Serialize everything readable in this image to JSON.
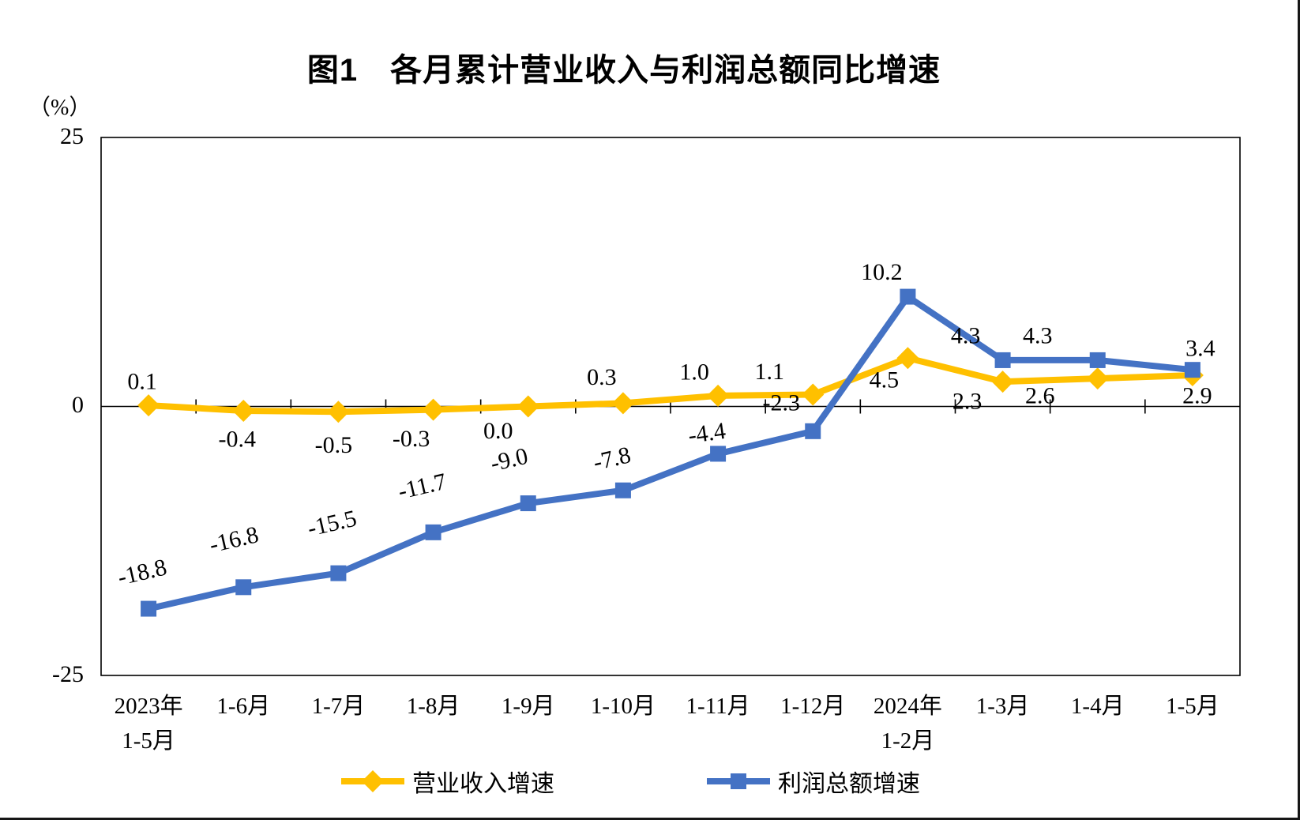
{
  "page": {
    "title": "图1　各月累计营业收入与利润总额同比增速"
  },
  "chart_data": {
    "type": "line",
    "title": "图1　各月累计营业收入与利润总额同比增速",
    "ylabel": "（%）",
    "ylim": [
      -25,
      25
    ],
    "yticks": [
      "25",
      "0",
      "-25"
    ],
    "grid": false,
    "legend_position": "bottom",
    "categories": [
      [
        "2023年",
        "1-5月"
      ],
      [
        "1-6月"
      ],
      [
        "1-7月"
      ],
      [
        "1-8月"
      ],
      [
        "1-9月"
      ],
      [
        "1-10月"
      ],
      [
        "1-11月"
      ],
      [
        "1-12月"
      ],
      [
        "2024年",
        "1-2月"
      ],
      [
        "1-3月"
      ],
      [
        "1-4月"
      ],
      [
        "1-5月"
      ]
    ],
    "series": [
      {
        "name": "营业收入增速",
        "color": "#FFC000",
        "marker": "diamond",
        "values": [
          0.1,
          -0.4,
          -0.5,
          -0.3,
          0.0,
          0.3,
          1.0,
          1.1,
          4.5,
          2.3,
          2.6,
          2.9
        ],
        "labels": [
          "0.1",
          "-0.4",
          "-0.5",
          "-0.3",
          "0.0",
          "0.3",
          "1.0",
          "1.1",
          "4.5",
          "2.3",
          "2.6",
          "2.9"
        ]
      },
      {
        "name": "利润总额增速",
        "color": "#4472C4",
        "marker": "square",
        "values": [
          -18.8,
          -16.8,
          -15.5,
          -11.7,
          -9.0,
          -7.8,
          -4.4,
          -2.3,
          10.2,
          4.3,
          4.3,
          3.4
        ],
        "labels": [
          "-18.8",
          "-16.8",
          "-15.5",
          "-11.7",
          "-9.0",
          "-7.8",
          "-4.4",
          "-2.3",
          "10.2",
          "4.3",
          "4.3",
          "3.4"
        ]
      }
    ]
  }
}
